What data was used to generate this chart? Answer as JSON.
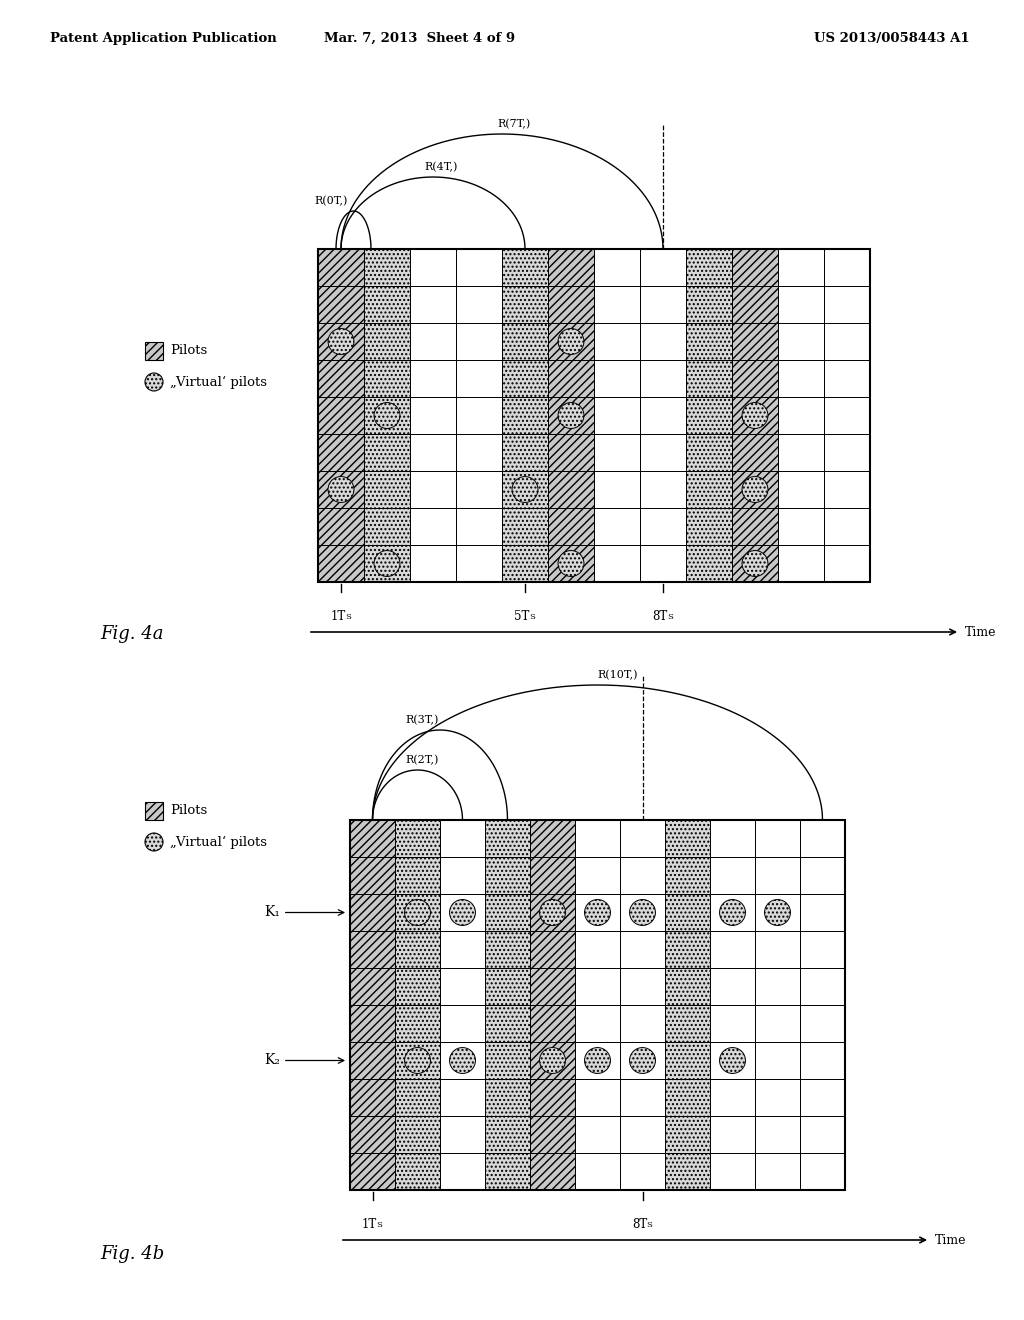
{
  "header_left": "Patent Application Publication",
  "header_center": "Mar. 7, 2013  Sheet 4 of 9",
  "header_right": "US 2013/0058443 A1",
  "fig_a_label": "Fig. 4a",
  "fig_b_label": "Fig. 4b",
  "background": "#ffffff"
}
